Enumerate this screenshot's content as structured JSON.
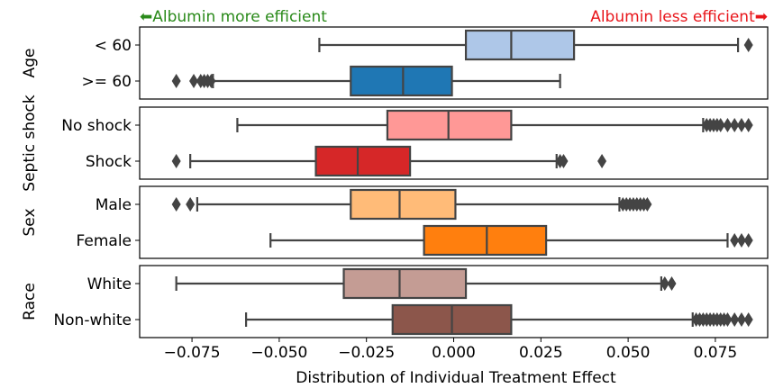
{
  "chart_data": {
    "type": "box",
    "xlabel": "Distribution of Individual Treatment Effect",
    "xlim": [
      -0.09,
      0.09
    ],
    "xticks": [
      -0.075,
      -0.05,
      -0.025,
      0.0,
      0.025,
      0.05,
      0.075
    ],
    "xtick_labels": [
      "−0.075",
      "−0.050",
      "−0.025",
      "0.000",
      "0.025",
      "0.050",
      "0.075"
    ],
    "annotation_left": {
      "text": "⬅Albumin more efficient",
      "color": "#2a8a1a"
    },
    "annotation_right": {
      "text": "Albumin less efficient➡",
      "color": "#e8161b"
    },
    "panels": [
      {
        "ylabel": "Age",
        "groups": [
          {
            "label": "< 60",
            "color": "#aec7e8",
            "whisker_low": -0.0385,
            "q1": 0.0035,
            "median": 0.0165,
            "q3": 0.0345,
            "whisker_high": 0.0815,
            "outliers": [
              0.0845
            ]
          },
          {
            "label": ">= 60",
            "color": "#1f77b4",
            "whisker_low": -0.069,
            "q1": -0.0295,
            "median": -0.0145,
            "q3": -0.0005,
            "whisker_high": 0.0305,
            "outliers": [
              -0.0795,
              -0.0745,
              -0.0725,
              -0.0715,
              -0.0705,
              -0.0695
            ]
          }
        ]
      },
      {
        "ylabel": "Septic shock",
        "groups": [
          {
            "label": "No shock",
            "color": "#ff9896",
            "whisker_low": -0.062,
            "q1": -0.019,
            "median": -0.0015,
            "q3": 0.0165,
            "whisker_high": 0.0715,
            "outliers": [
              0.0725,
              0.0735,
              0.0745,
              0.0755,
              0.0765,
              0.0785,
              0.0805,
              0.0825,
              0.0845
            ]
          },
          {
            "label": "Shock",
            "color": "#d62728",
            "whisker_low": -0.0755,
            "q1": -0.0395,
            "median": -0.0275,
            "q3": -0.0125,
            "whisker_high": 0.0295,
            "outliers": [
              -0.0795,
              0.0305,
              0.0315,
              0.0425
            ]
          }
        ]
      },
      {
        "ylabel": "Sex",
        "groups": [
          {
            "label": "Male",
            "color": "#ffbb78",
            "whisker_low": -0.0735,
            "q1": -0.0295,
            "median": -0.0155,
            "q3": 0.0005,
            "whisker_high": 0.0475,
            "outliers": [
              -0.0795,
              -0.0755,
              0.0485,
              0.0495,
              0.0505,
              0.0515,
              0.0525,
              0.0535,
              0.0545,
              0.0555
            ]
          },
          {
            "label": "Female",
            "color": "#ff7f0e",
            "whisker_low": -0.0525,
            "q1": -0.0085,
            "median": 0.0095,
            "q3": 0.0265,
            "whisker_high": 0.0785,
            "outliers": [
              0.0805,
              0.0825,
              0.0845
            ]
          }
        ]
      },
      {
        "ylabel": "Race",
        "groups": [
          {
            "label": "White",
            "color": "#c49c94",
            "whisker_low": -0.0795,
            "q1": -0.0315,
            "median": -0.0155,
            "q3": 0.0035,
            "whisker_high": 0.0595,
            "outliers": [
              0.0605,
              0.0625
            ]
          },
          {
            "label": "Non-white",
            "color": "#8c564b",
            "whisker_low": -0.0595,
            "q1": -0.0175,
            "median": -0.0005,
            "q3": 0.0165,
            "whisker_high": 0.0685,
            "outliers": [
              0.0695,
              0.0705,
              0.0715,
              0.0725,
              0.0735,
              0.0745,
              0.0755,
              0.0765,
              0.0775,
              0.0785,
              0.0805,
              0.0825,
              0.0845
            ]
          }
        ]
      }
    ]
  }
}
